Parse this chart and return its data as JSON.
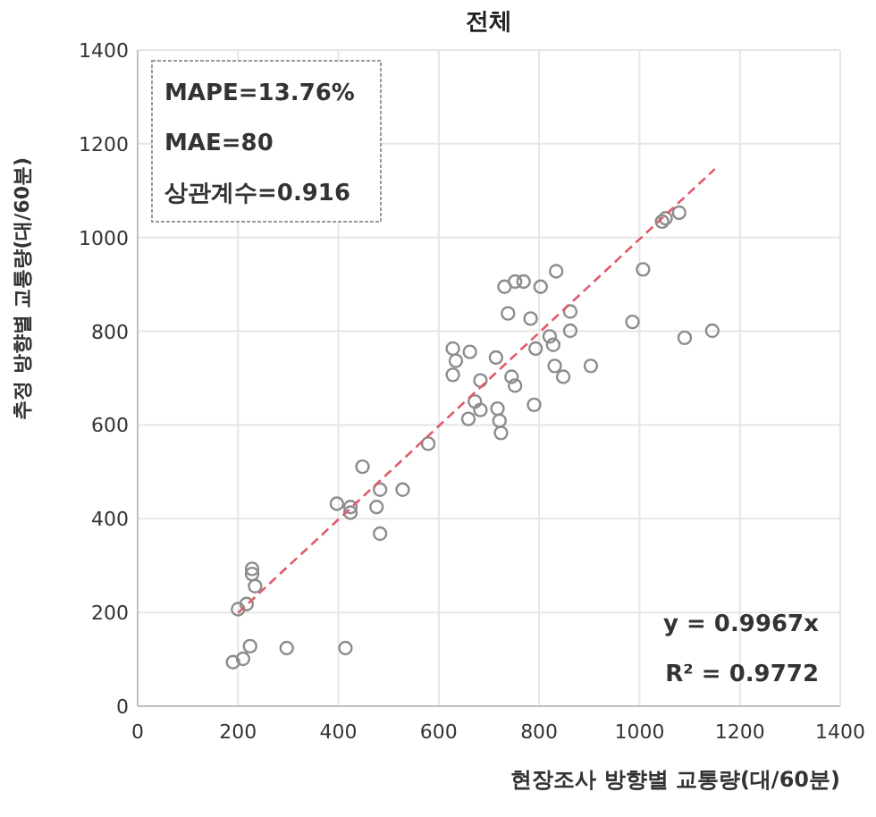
{
  "chart_data": {
    "type": "scatter",
    "title": "전체",
    "xlabel": "현장조사 방향별 교통량(대/60분)",
    "ylabel": "추정 방향별 교통량(대/60분)",
    "xlim": [
      0,
      1400
    ],
    "ylim": [
      0,
      1400
    ],
    "xticks": [
      0,
      200,
      400,
      600,
      800,
      1000,
      1200,
      1400
    ],
    "yticks": [
      0,
      200,
      400,
      600,
      800,
      1000,
      1200,
      1400
    ],
    "grid": true,
    "marker": "circle",
    "annotations": [
      "MAPE=13.76%",
      "MAE=80",
      "상관계수=0.916",
      "y = 0.9967x",
      "R² = 0.9772"
    ],
    "series": [
      {
        "color": "#8c8c8c",
        "x": [
          190,
          210,
          224,
          297,
          414,
          200,
          217,
          234,
          228,
          228,
          397,
          424,
          424,
          448,
          476,
          483,
          483,
          528,
          579,
          628,
          634,
          628,
          662,
          683,
          672,
          659,
          683,
          714,
          717,
          721,
          724,
          738,
          745,
          752,
          790,
          731,
          752,
          769,
          803,
          834,
          783,
          793,
          821,
          828,
          831,
          848,
          862,
          862,
          903,
          986,
          1007,
          1090,
          1145,
          1045,
          1052,
          1079
        ],
        "values": [
          94,
          101,
          128,
          124,
          124,
          207,
          218,
          256,
          282,
          293,
          432,
          425,
          413,
          511,
          425,
          462,
          368,
          462,
          560,
          763,
          737,
          707,
          756,
          695,
          650,
          613,
          632,
          744,
          635,
          609,
          583,
          838,
          703,
          684,
          643,
          895,
          906,
          906,
          895,
          928,
          827,
          763,
          789,
          771,
          726,
          703,
          801,
          842,
          726,
          820,
          932,
          786,
          801,
          1034,
          1041,
          1053
        ]
      },
      {
        "type": "line",
        "color": "#e05a6a",
        "line_style": "dashed",
        "marker": "none",
        "x": [
          200,
          1150
        ],
        "values": [
          199,
          1146
        ]
      }
    ]
  }
}
